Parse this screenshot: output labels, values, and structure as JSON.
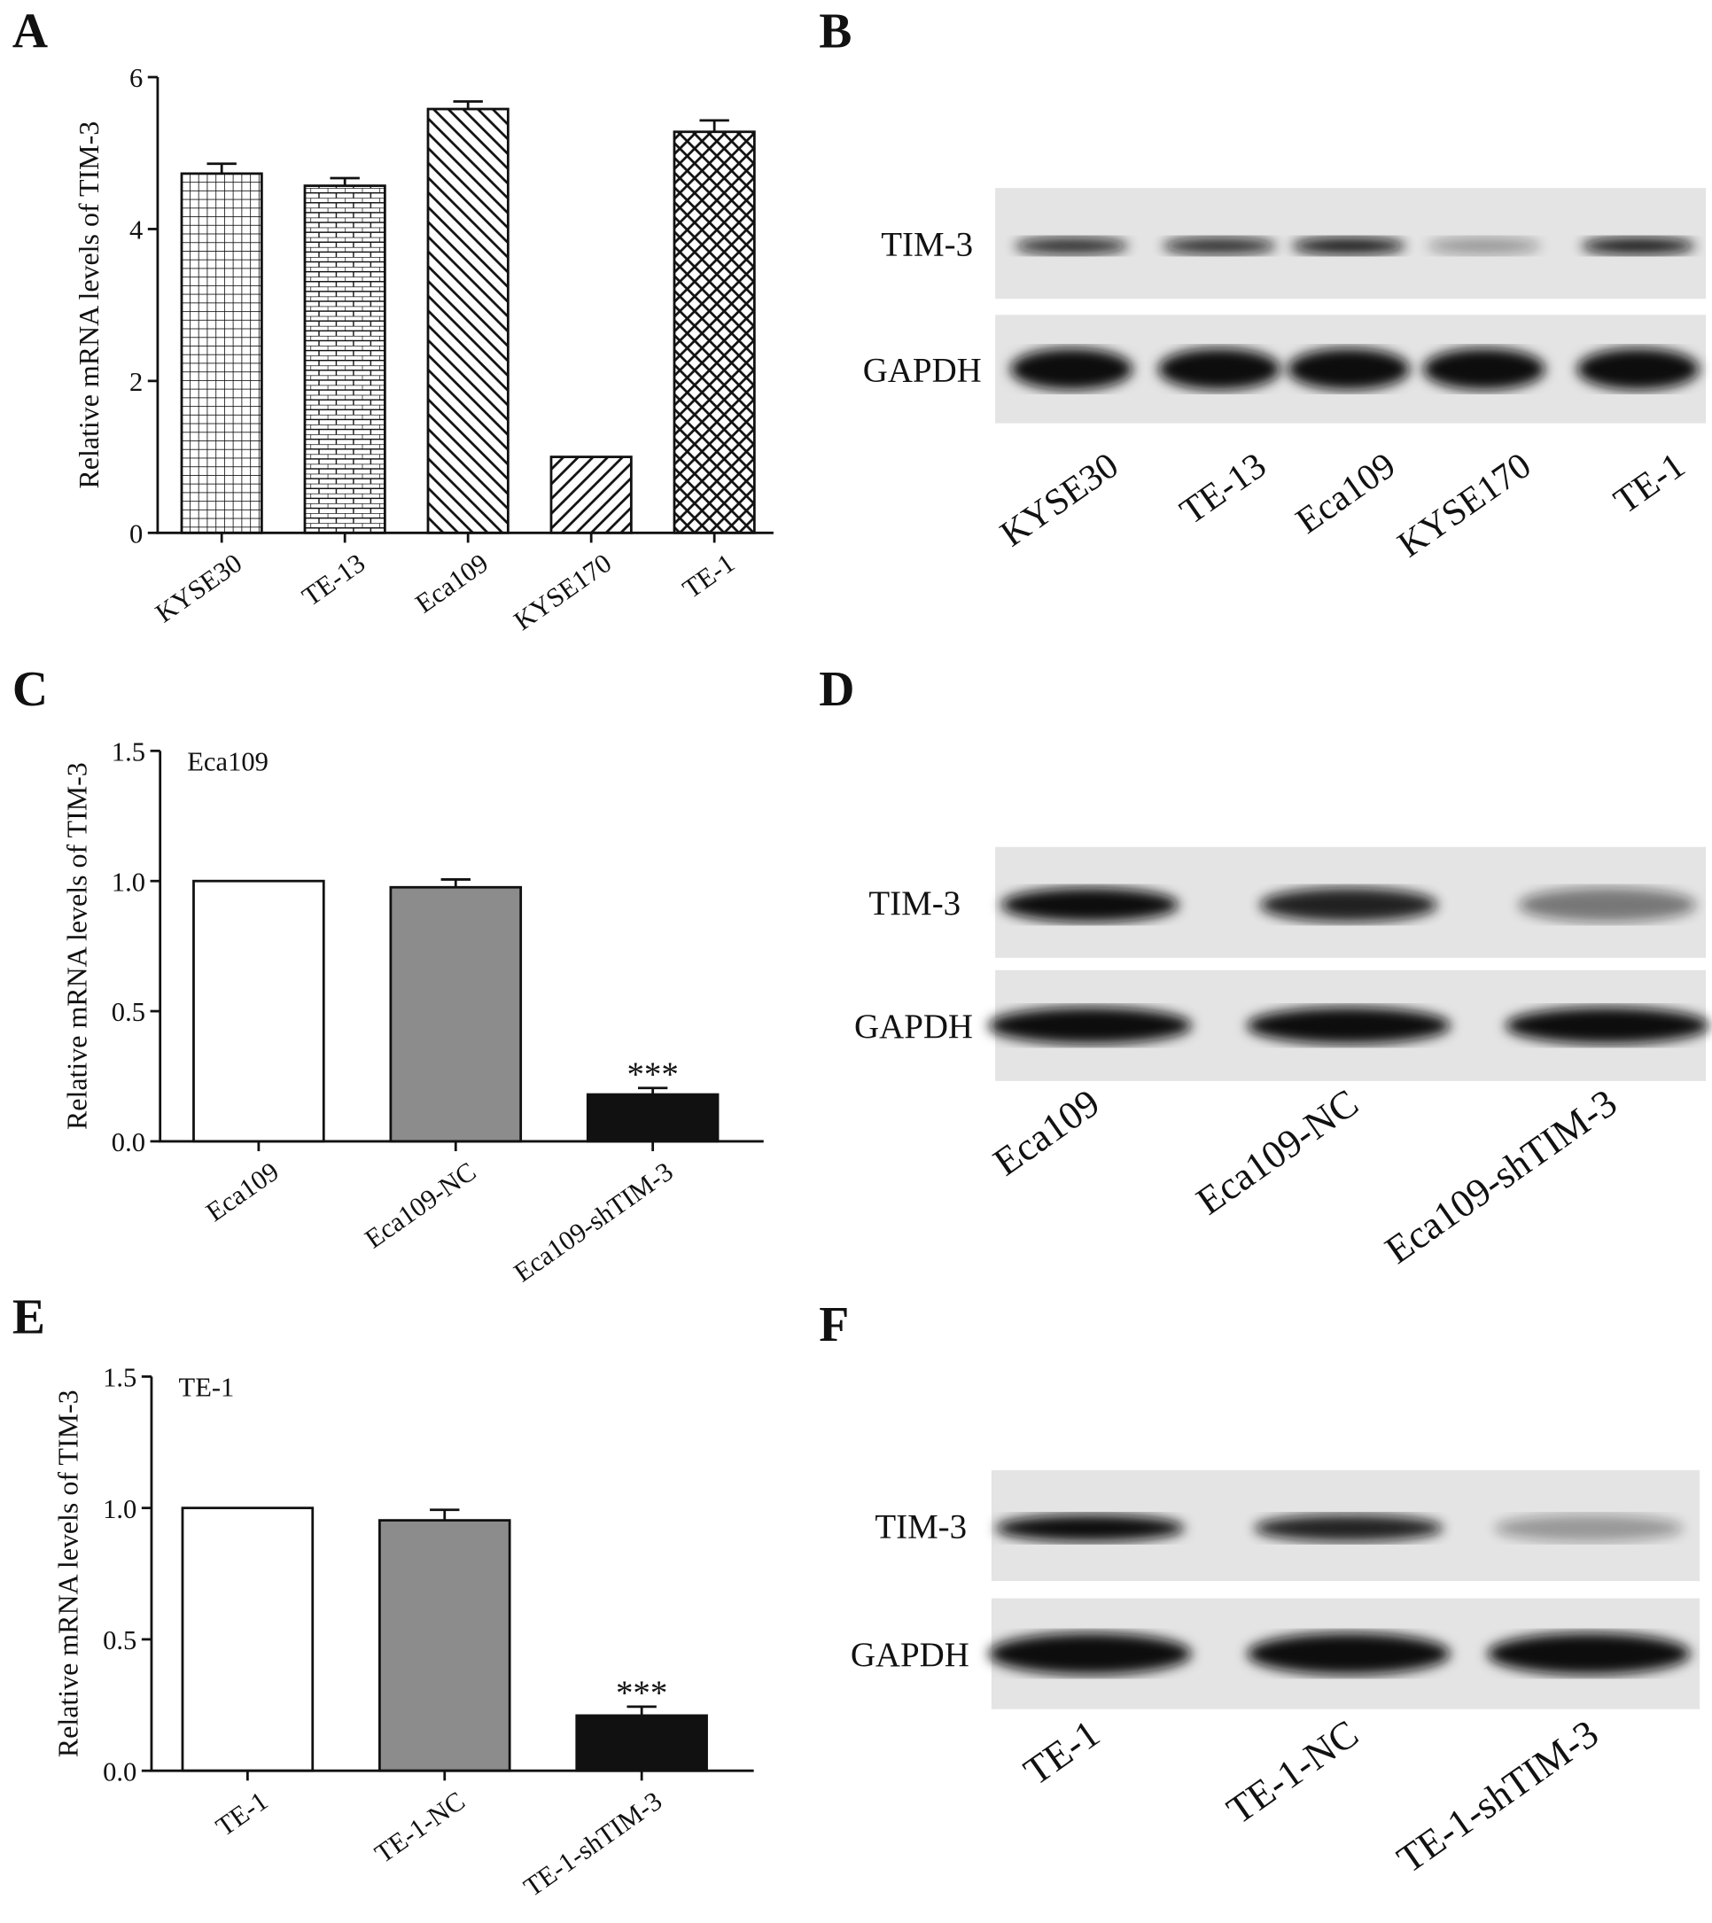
{
  "chart_data": [
    {
      "type": "bar",
      "label": "A",
      "ylabel": "Relative mRNA levels of TIM-3",
      "categories": [
        "KYSE30",
        "TE-13",
        "Eca109",
        "KYSE170",
        "TE-1"
      ],
      "values": [
        4.73,
        4.57,
        5.58,
        1.0,
        5.28
      ],
      "errors": [
        0.13,
        0.1,
        0.1,
        0,
        0.15
      ],
      "patterns": [
        "grid",
        "brick",
        "diag-back",
        "diag-fwd",
        "crosshatch"
      ],
      "ylim": [
        0,
        6
      ],
      "yticks": [
        0,
        2,
        4,
        6
      ]
    },
    {
      "type": "bar",
      "label": "C",
      "subtitle": "Eca109",
      "ylabel": "Relative mRNA levels of TIM-3",
      "categories": [
        "Eca109",
        "Eca109-NC",
        "Eca109-shTIM-3"
      ],
      "values": [
        1.0,
        0.976,
        0.18
      ],
      "errors": [
        0,
        0.03,
        0.025
      ],
      "colors": [
        "#ffffff",
        "#8c8c8c",
        "#111111"
      ],
      "annotations": [
        null,
        null,
        "***"
      ],
      "ylim": [
        0,
        1.5
      ],
      "yticks": [
        {
          "value": 0,
          "label": "0.0"
        },
        0.5,
        {
          "value": 1,
          "label": "1.0"
        },
        1.5
      ]
    },
    {
      "type": "bar",
      "label": "E",
      "subtitle": "TE-1",
      "ylabel": "Relative mRNA levels of TIM-3",
      "categories": [
        "TE-1",
        "TE-1-NC",
        "TE-1-shTIM-3"
      ],
      "values": [
        1.0,
        0.953,
        0.21
      ],
      "errors": [
        0,
        0.04,
        0.034
      ],
      "colors": [
        "#ffffff",
        "#8c8c8c",
        "#111111"
      ],
      "annotations": [
        null,
        null,
        "***"
      ],
      "ylim": [
        0,
        1.5
      ],
      "yticks": [
        {
          "value": 0,
          "label": "0.0"
        },
        0.5,
        {
          "value": 1,
          "label": "1.0"
        },
        1.5
      ]
    }
  ],
  "blots": [
    {
      "label": "B",
      "rows": [
        "TIM-3",
        "GAPDH"
      ],
      "lanes": [
        "KYSE30",
        "TE-13",
        "Eca109",
        "KYSE170",
        "TE-1"
      ]
    },
    {
      "label": "D",
      "rows": [
        "TIM-3",
        "GAPDH"
      ],
      "lanes": [
        "Eca109",
        "Eca109-NC",
        "Eca109-shTIM-3"
      ]
    },
    {
      "label": "F",
      "rows": [
        "TIM-3",
        "GAPDH"
      ],
      "lanes": [
        "TE-1",
        "TE-1-NC",
        "TE-1-shTIM-3"
      ]
    }
  ]
}
